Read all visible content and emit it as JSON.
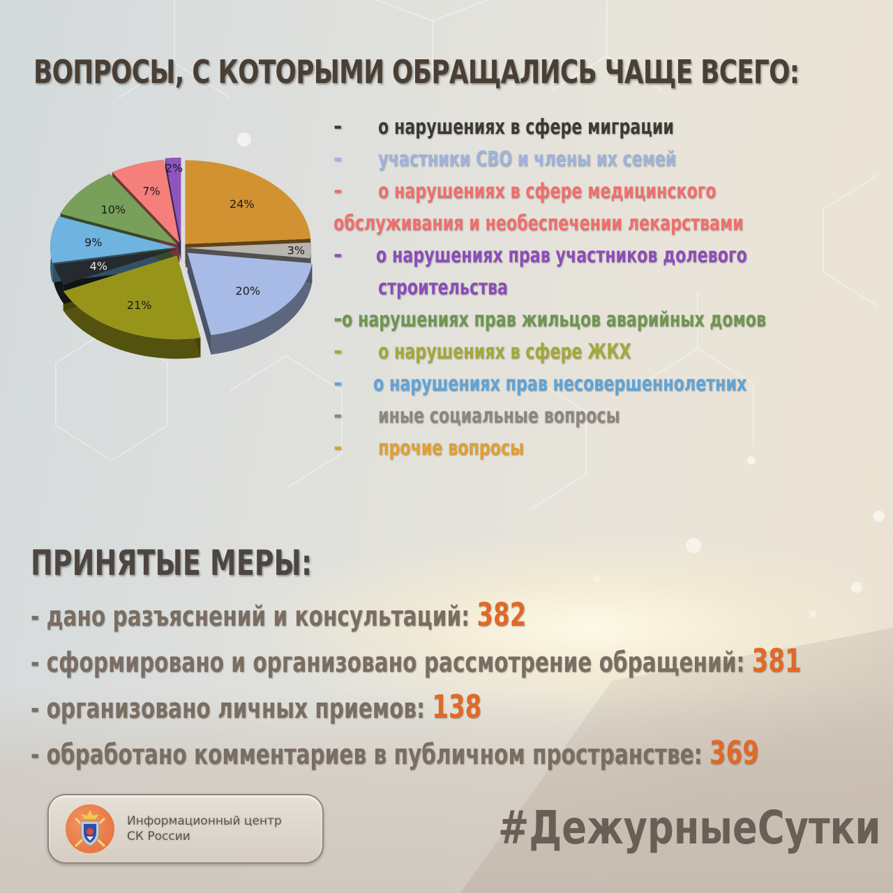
{
  "title": "ВОПРОСЫ, С КОТОРЫМИ ОБРАЩАЛИСЬ ЧАЩЕ ВСЕГО:",
  "legend": {
    "items": [
      {
        "dash": "-",
        "lines": [
          "о нарушениях в сфере миграции"
        ],
        "color": "#3d3935"
      },
      {
        "dash": "-",
        "lines": [
          "участники СВО и члены их семей"
        ],
        "color": "#9fb2de"
      },
      {
        "dash": "-",
        "lines": [
          "о нарушениях в сфере медицинского",
          "обслуживания и необеспечении лекарствами"
        ],
        "color": "#ef6f6c"
      },
      {
        "dash": "-",
        "lines": [
          "о нарушениях прав участников долевого",
          "строительства"
        ],
        "color": "#8b4db8"
      },
      {
        "dash": "-",
        "lines": [
          "о нарушениях прав жильцов аварийных домов"
        ],
        "color": "#6e9650"
      },
      {
        "dash": "-",
        "lines": [
          "о нарушениях в сфере ЖКХ"
        ],
        "color": "#a3a83a"
      },
      {
        "dash": "-",
        "lines": [
          "о нарушениях прав несовершеннолетних"
        ],
        "color": "#5fa4d8"
      },
      {
        "dash": "-",
        "lines": [
          "иные социальные вопросы"
        ],
        "color": "#8c8580"
      },
      {
        "dash": "-",
        "lines": [
          "прочие вопросы"
        ],
        "color": "#e1a030"
      }
    ]
  },
  "chart_data": {
    "type": "pie",
    "title": "ВОПРОСЫ, С КОТОРЫМИ ОБРАЩАЛИСЬ ЧАЩЕ ВСЕГО:",
    "categories": [
      "прочие вопросы",
      "иные социальные вопросы",
      "участники СВО и члены их семей",
      "о нарушениях в сфере ЖКХ",
      "о нарушениях в сфере миграции",
      "о нарушениях прав несовершеннолетних",
      "о нарушениях прав жильцов аварийных домов",
      "о нарушениях в сфере медицинского обслуживания и необеспечении лекарствами",
      "о нарушениях прав участников долевого строительства"
    ],
    "values": [
      24,
      3,
      20,
      21,
      4,
      9,
      10,
      7,
      2
    ],
    "labels": [
      "24%",
      "3%",
      "20%",
      "21%",
      "4%",
      "9%",
      "10%",
      "7%",
      "2%"
    ],
    "colors": [
      "#d29232",
      "#b8b4b0",
      "#a7bbe6",
      "#96951a",
      "#252a2e",
      "#6fb3e0",
      "#78a05a",
      "#f57f7a",
      "#8e55c0"
    ],
    "legend_position": "right",
    "style": "3d exploded"
  },
  "measures": {
    "title": "ПРИНЯТЫЕ МЕРЫ:",
    "items": [
      {
        "label": "- дано разъяснений и консультаций: ",
        "value": "382"
      },
      {
        "label": "- сформировано и организовано рассмотрение обращений: ",
        "value": "381"
      },
      {
        "label": "- организовано личных приемов: ",
        "value": "138"
      },
      {
        "label": "- обработано комментариев в публичном пространстве: ",
        "value": "369"
      }
    ],
    "value_color": "#e0692a"
  },
  "footer": {
    "logo_line1": "Информационный центр",
    "logo_line2": "СК России",
    "hashtag": "#ДежурныеСутки"
  }
}
